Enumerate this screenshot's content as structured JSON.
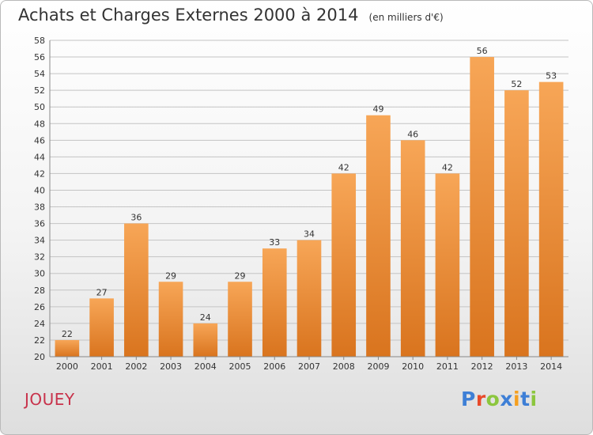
{
  "title": "Achats et Charges Externes 2000 à 2014",
  "unit": "(en milliers d'€)",
  "commune": "JOUEY",
  "logo": {
    "letters": [
      "P",
      "r",
      "o",
      "x",
      "i",
      "t",
      "i"
    ],
    "colors": [
      "#3e7fd6",
      "#e84a2a",
      "#8cc63e",
      "#3e7fd6",
      "#f5a020",
      "#3e7fd6",
      "#8cc63e"
    ]
  },
  "colors": {
    "bar_top": "#f7a657",
    "bar_bottom": "#d9741e",
    "grid": "#c4c4c4",
    "axis": "#888888"
  },
  "chart_data": {
    "type": "bar",
    "categories": [
      "2000",
      "2001",
      "2002",
      "2003",
      "2004",
      "2005",
      "2006",
      "2007",
      "2008",
      "2009",
      "2010",
      "2011",
      "2012",
      "2013",
      "2014"
    ],
    "values": [
      22,
      27,
      36,
      29,
      24,
      29,
      33,
      34,
      42,
      49,
      46,
      42,
      56,
      52,
      53
    ],
    "title": "Achats et Charges Externes 2000 à 2014",
    "ylabel": "",
    "xlabel": "",
    "ylim": [
      20,
      58
    ],
    "ytick_step": 2,
    "grid": true,
    "data_labels": true
  }
}
